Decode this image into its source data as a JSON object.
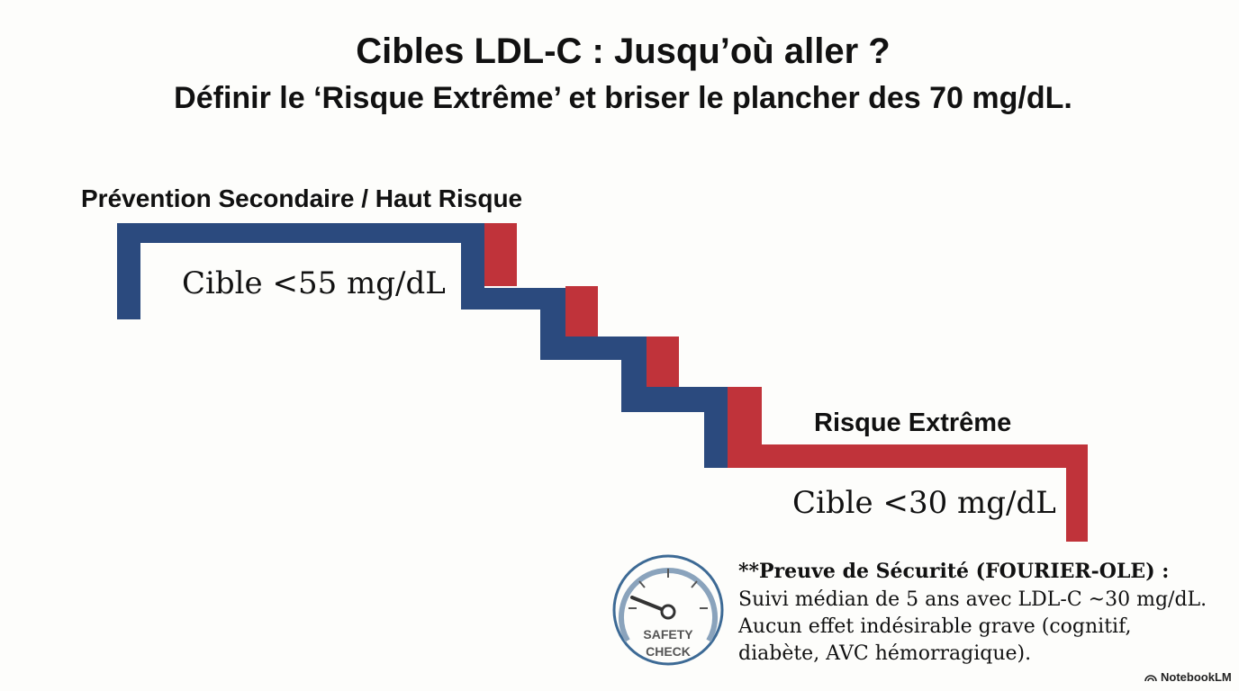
{
  "title": "Cibles LDL-C : Jusqu’où aller ?",
  "subtitle": "Définir le ‘Risque Extrême’ et briser le plancher des 70 mg/dL.",
  "high_risk": {
    "label": "Prévention Secondaire / Haut Risque",
    "target": "Cible <55 mg/dL"
  },
  "extreme_risk": {
    "label": "Risque Extrême",
    "target": "Cible <30 mg/dL"
  },
  "gauge": {
    "line1": "SAFETY",
    "line2": "CHECK"
  },
  "safety": {
    "heading": "**Preuve de Sécurité (FOURIER-OLE) :",
    "lines": [
      "Suivi médian de 5 ans avec LDL-C ~30 mg/dL.",
      "Aucun effet indésirable grave (cognitif,",
      "diabète, AVC hémorragique)."
    ]
  },
  "footer": "NotebookLM"
}
